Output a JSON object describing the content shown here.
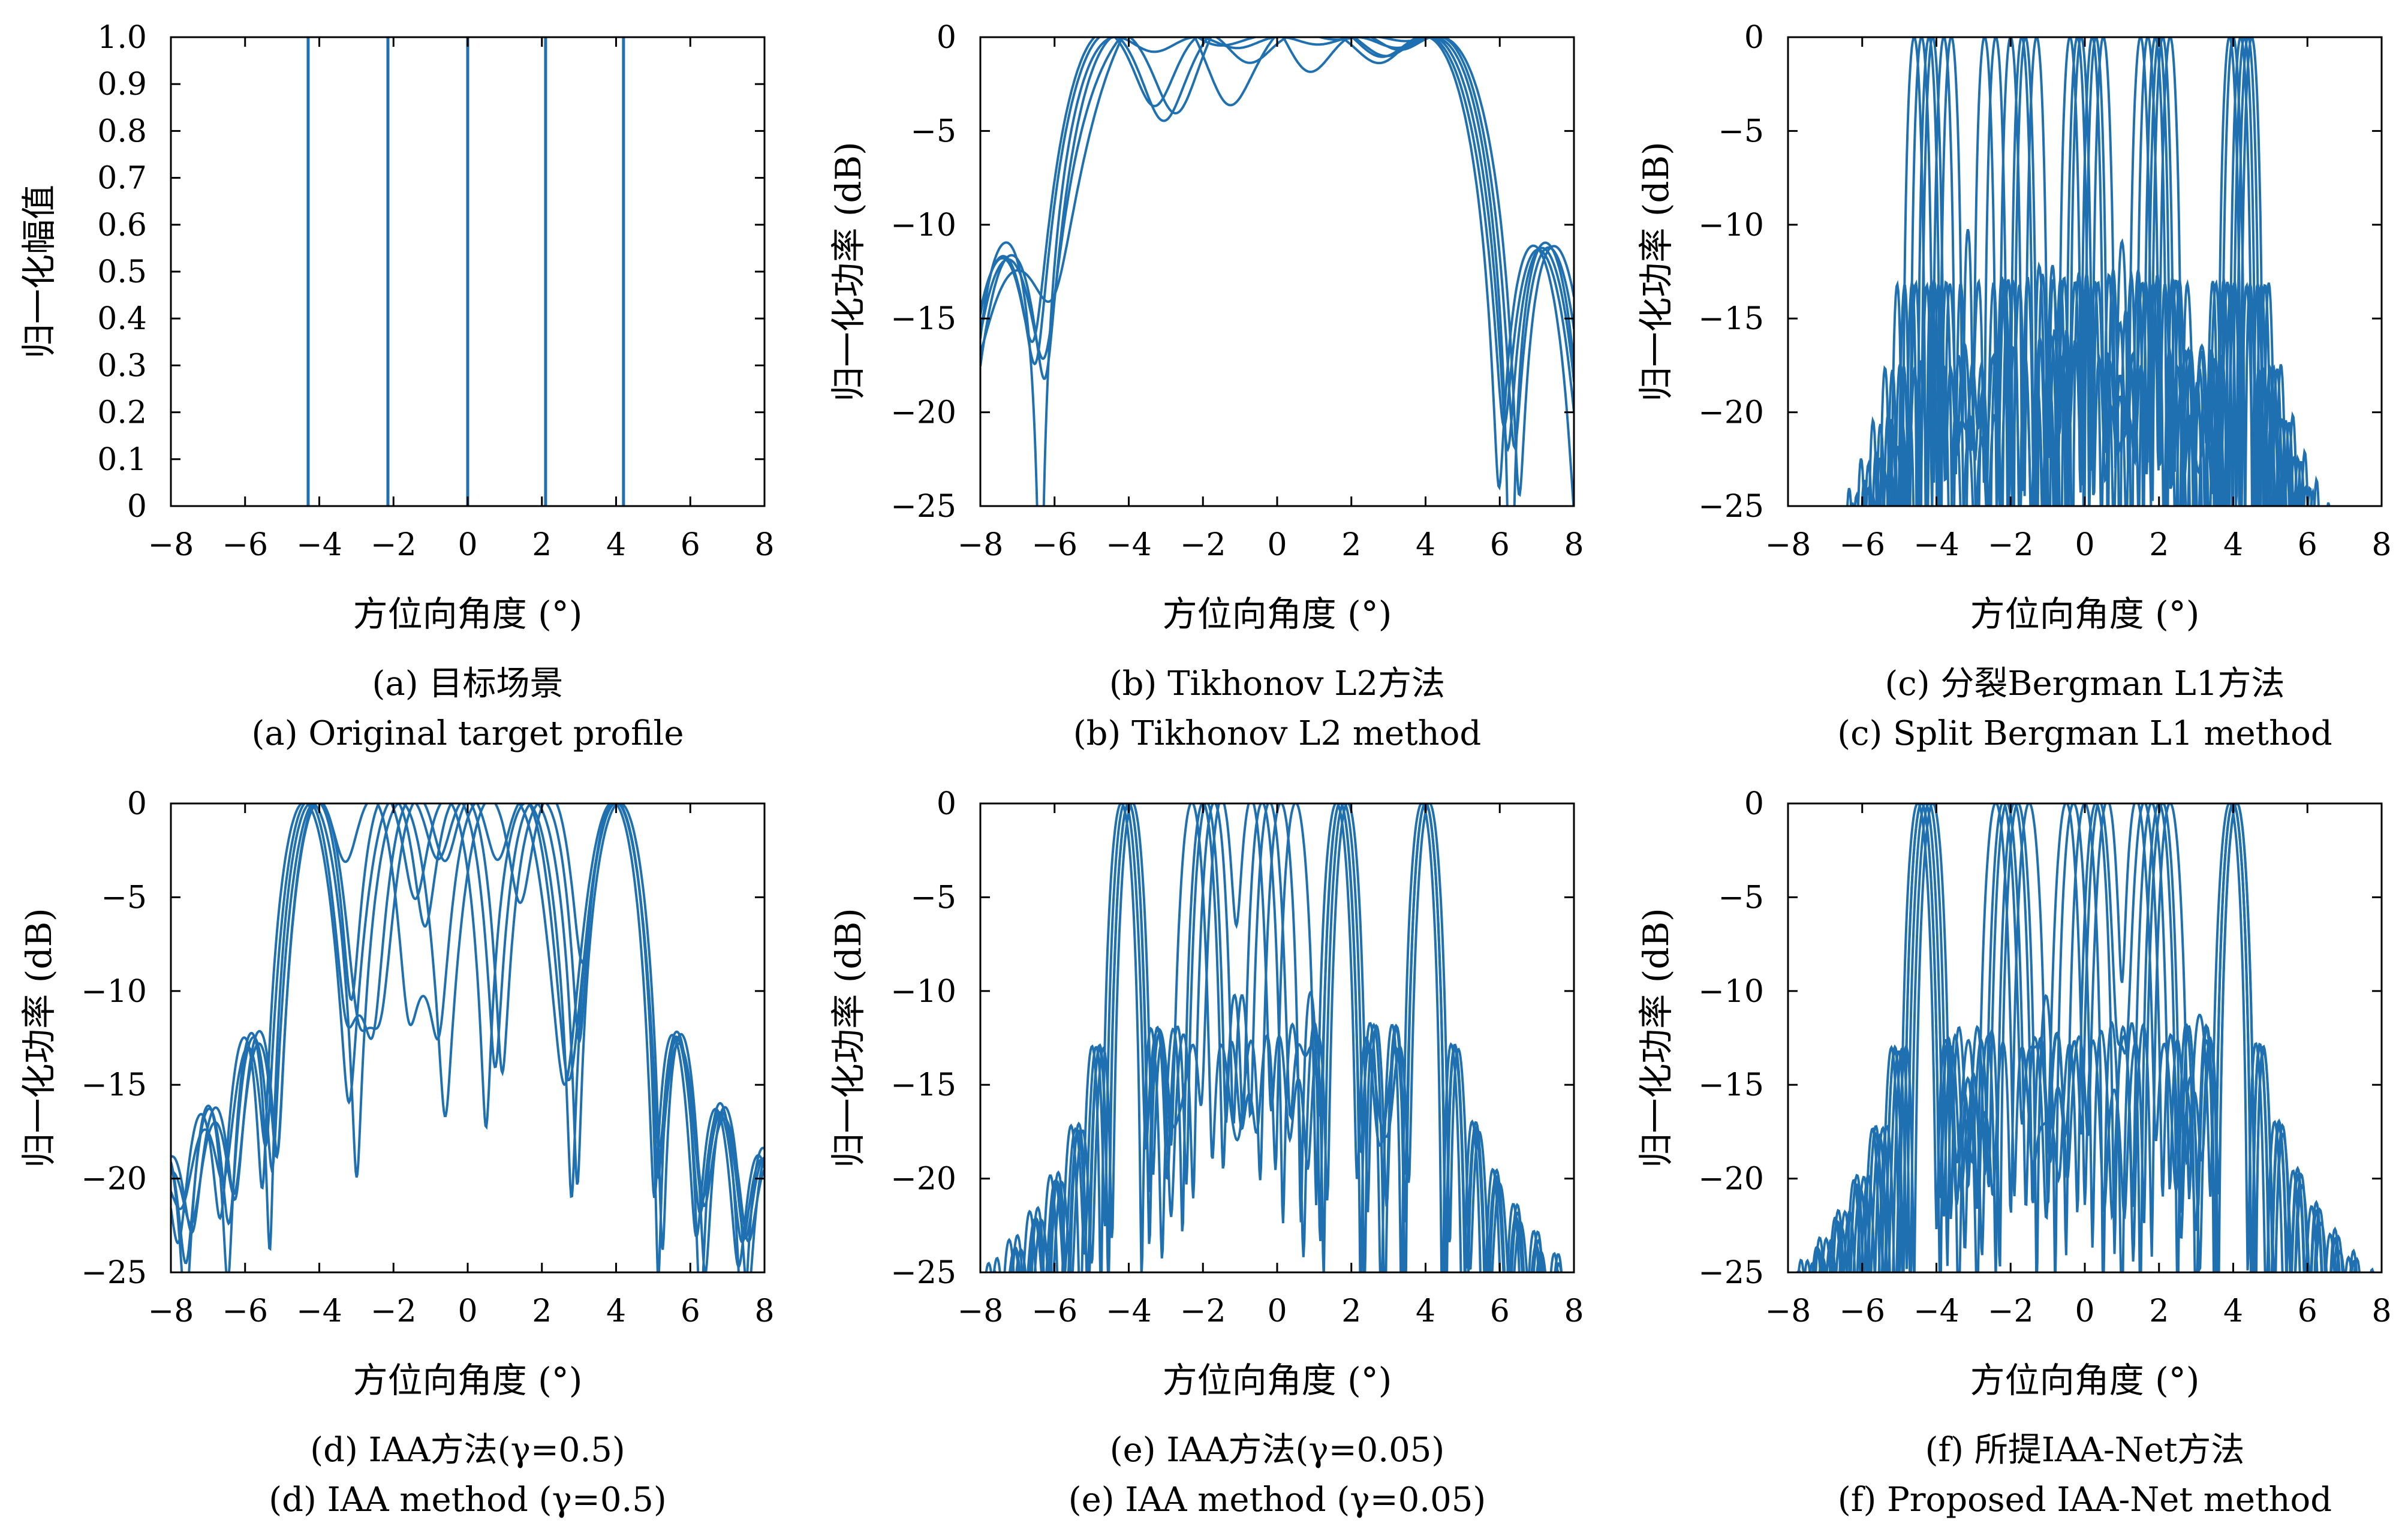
{
  "line_color": "#1f70b0",
  "chart_data": [
    {
      "id": "a",
      "type": "line",
      "caption_cn": "(a) 目标场景",
      "caption_en": "(a) Original target profile",
      "xlabel": "方位向角度 (°)",
      "ylabel": "归一化幅值",
      "xlim": [
        -8,
        8
      ],
      "ylim": [
        0,
        1
      ],
      "xticks": [
        -8,
        -6,
        -4,
        -2,
        0,
        2,
        4,
        6,
        8
      ],
      "xtick_labels": [
        "−8",
        "−6",
        "−4",
        "−2",
        "0",
        "2",
        "4",
        "6",
        "8"
      ],
      "yticks": [
        0,
        0.1,
        0.2,
        0.3,
        0.4,
        0.5,
        0.6,
        0.7,
        0.8,
        0.9,
        1.0
      ],
      "ytick_labels": [
        "0",
        "0.1",
        "0.2",
        "0.3",
        "0.4",
        "0.5",
        "0.6",
        "0.7",
        "0.8",
        "0.9",
        "1.0"
      ],
      "mode": "impulse",
      "targets": [
        -4.3,
        -2.15,
        0,
        2.1,
        4.2
      ]
    },
    {
      "id": "b",
      "type": "line",
      "caption_cn": "(b) Tikhonov L2方法",
      "caption_en": "(b) Tikhonov L2 method",
      "xlabel": "方位向角度 (°)",
      "ylabel": "归一化功率 (dB)",
      "xlim": [
        -8,
        8
      ],
      "ylim": [
        -25,
        0
      ],
      "xticks": [
        -8,
        -6,
        -4,
        -2,
        0,
        2,
        4,
        6,
        8
      ],
      "xtick_labels": [
        "−8",
        "−6",
        "−4",
        "−2",
        "0",
        "2",
        "4",
        "6",
        "8"
      ],
      "yticks": [
        0,
        -5,
        -10,
        -15,
        -20,
        -25
      ],
      "ytick_labels": [
        "0",
        "−5",
        "−10",
        "−15",
        "−20",
        "−25"
      ],
      "mode": "spectrum",
      "trials": [
        [
          -4.3,
          -2.15,
          0,
          2.1,
          4.2
        ],
        [
          -4.5,
          -1.6,
          0.1,
          1.9,
          4.1
        ],
        [
          -4.0,
          -2.4,
          -0.3,
          1.6,
          3.9
        ],
        [
          -4.6,
          -1.9,
          0.4,
          2.4,
          4.4
        ],
        [
          -3.8,
          -2.6,
          0.2,
          1.8,
          4.0
        ],
        [
          -4.2,
          -1.4,
          -0.2,
          2.2,
          4.3
        ]
      ],
      "beam_rad": 2.1,
      "floor_db": -30
    },
    {
      "id": "c",
      "type": "line",
      "caption_cn": "(c) 分裂Bergman L1方法",
      "caption_en": "(c) Split Bergman L1 method",
      "xlabel": "方位向角度 (°)",
      "ylabel": "归一化功率 (dB)",
      "xlim": [
        -8,
        8
      ],
      "ylim": [
        -25,
        0
      ],
      "xticks": [
        -8,
        -6,
        -4,
        -2,
        0,
        2,
        4,
        6,
        8
      ],
      "xtick_labels": [
        "−8",
        "−6",
        "−4",
        "−2",
        "0",
        "2",
        "4",
        "6",
        "8"
      ],
      "yticks": [
        0,
        -5,
        -10,
        -15,
        -20,
        -25
      ],
      "ytick_labels": [
        "0",
        "−5",
        "−10",
        "−15",
        "−20",
        "−25"
      ],
      "mode": "spectrum",
      "trials": [
        [
          -4.4,
          -2.0,
          -0.1,
          2.0,
          4.2
        ],
        [
          -4.1,
          -2.4,
          0.2,
          1.7,
          4.4
        ],
        [
          -3.8,
          -1.7,
          -0.4,
          2.3,
          4.0
        ],
        [
          -4.6,
          -1.3,
          0.5,
          1.5,
          4.3
        ],
        [
          -3.6,
          -2.7,
          -0.2,
          2.1,
          3.9
        ],
        [
          -4.2,
          -1.6,
          0.3,
          1.9,
          4.5
        ]
      ],
      "beam_rad": 0.32,
      "floor_db": -30
    },
    {
      "id": "d",
      "type": "line",
      "caption_cn": "(d) IAA方法(γ=0.5)",
      "caption_en": "(d) IAA method (γ=0.5)",
      "xlabel": "方位向角度 (°)",
      "ylabel": "归一化功率 (dB)",
      "xlim": [
        -8,
        8
      ],
      "ylim": [
        -25,
        0
      ],
      "xticks": [
        -8,
        -6,
        -4,
        -2,
        0,
        2,
        4,
        6,
        8
      ],
      "xtick_labels": [
        "−8",
        "−6",
        "−4",
        "−2",
        "0",
        "2",
        "4",
        "6",
        "8"
      ],
      "yticks": [
        0,
        -5,
        -10,
        -15,
        -20,
        -25
      ],
      "ytick_labels": [
        "0",
        "−5",
        "−10",
        "−15",
        "−20",
        "−25"
      ],
      "mode": "spectrum",
      "trials": [
        [
          -4.1,
          -2.2,
          -0.6,
          1.6,
          4.0
        ],
        [
          -4.3,
          -1.5,
          -0.1,
          2.0,
          4.0
        ],
        [
          -4.0,
          -2.6,
          0.3,
          1.3,
          3.9
        ],
        [
          -4.2,
          -1.8,
          0.6,
          2.2,
          4.0
        ],
        [
          -4.4,
          -2.0,
          -0.3,
          1.8,
          4.1
        ],
        [
          -4.0,
          -1.3,
          0.1,
          1.5,
          4.0
        ]
      ],
      "beam_rad": 1.15,
      "floor_db": -26
    },
    {
      "id": "e",
      "type": "line",
      "caption_cn": "(e) IAA方法(γ=0.05)",
      "caption_en": "(e) IAA method (γ=0.05)",
      "xlabel": "方位向角度 (°)",
      "ylabel": "归一化功率 (dB)",
      "xlim": [
        -8,
        8
      ],
      "ylim": [
        -25,
        0
      ],
      "xticks": [
        -8,
        -6,
        -4,
        -2,
        0,
        2,
        4,
        6,
        8
      ],
      "xtick_labels": [
        "−8",
        "−6",
        "−4",
        "−2",
        "0",
        "2",
        "4",
        "6",
        "8"
      ],
      "yticks": [
        0,
        -5,
        -10,
        -15,
        -20,
        -25
      ],
      "ytick_labels": [
        "0",
        "−5",
        "−10",
        "−15",
        "−20",
        "−25"
      ],
      "mode": "spectrum",
      "trials": [
        [
          -4.0,
          -1.9,
          -0.4,
          1.8,
          4.0
        ],
        [
          -4.1,
          -2.3,
          0.1,
          1.7,
          3.9
        ],
        [
          -3.9,
          -1.5,
          -0.7,
          1.9,
          4.0
        ],
        [
          -4.2,
          -2.0,
          0.5,
          1.6,
          4.0
        ],
        [
          -4.0,
          -1.7,
          -0.2,
          1.7,
          4.1
        ]
      ],
      "beam_rad": 0.55,
      "floor_db": -26
    },
    {
      "id": "f",
      "type": "line",
      "caption_cn": "(f) 所提IAA-Net方法",
      "caption_en": "(f) Proposed IAA-Net method",
      "xlabel": "方位向角度 (°)",
      "ylabel": "归一化功率 (dB)",
      "xlim": [
        -8,
        8
      ],
      "ylim": [
        -25,
        0
      ],
      "xticks": [
        -8,
        -6,
        -4,
        -2,
        0,
        2,
        4,
        6,
        8
      ],
      "xtick_labels": [
        "−8",
        "−6",
        "−4",
        "−2",
        "0",
        "2",
        "4",
        "6",
        "8"
      ],
      "yticks": [
        0,
        -5,
        -10,
        -15,
        -20,
        -25
      ],
      "ytick_labels": [
        "0",
        "−5",
        "−10",
        "−15",
        "−20",
        "−25"
      ],
      "mode": "spectrum",
      "trials": [
        [
          -4.4,
          -2.1,
          0.0,
          2.0,
          4.0
        ],
        [
          -4.2,
          -1.8,
          -0.3,
          1.8,
          4.1
        ],
        [
          -4.5,
          -2.4,
          0.3,
          2.3,
          3.9
        ],
        [
          -4.3,
          -1.5,
          0.6,
          1.4,
          4.0
        ],
        [
          -4.1,
          -2.2,
          -0.5,
          2.1,
          4.0
        ],
        [
          -4.4,
          -1.9,
          0.4,
          1.6,
          4.1
        ]
      ],
      "beam_rad": 0.5,
      "floor_db": -26
    }
  ]
}
